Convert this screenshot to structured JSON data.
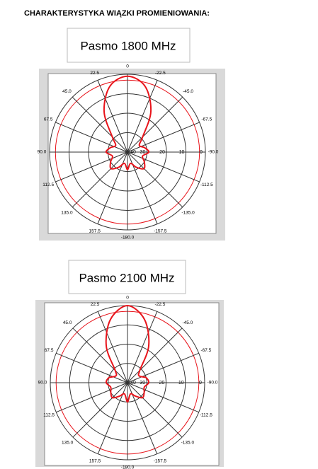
{
  "title": "CHARAKTERYSTYKA WIĄZKI PROMIENIOWANIA:",
  "chart_data": [
    {
      "type": "polar",
      "title": "Pasmo 1800 MHz",
      "x": [
        0,
        15,
        30,
        45,
        60,
        75,
        90,
        105,
        120,
        135,
        150,
        165,
        180,
        195,
        210,
        225,
        240,
        255,
        270,
        285,
        300,
        315,
        330,
        345
      ],
      "series": [
        {
          "color": "#e8141b",
          "values": [
            1,
            5,
            16,
            29,
            33,
            31,
            29,
            32,
            30,
            28,
            31,
            34,
            31,
            34,
            31,
            28,
            30,
            32,
            29,
            31,
            33,
            29,
            16,
            5
          ]
        }
      ],
      "angle_ticks": [
        0,
        22.5,
        {
          "value": 45,
          "label": "45.0"
        },
        67.5,
        {
          "value": 90,
          "label": "90.0"
        },
        112.5,
        {
          "value": 135,
          "label": "135.0"
        },
        157.5,
        {
          "value": -180,
          "label": "-180.0"
        },
        -157.5,
        {
          "value": -135,
          "label": "-135.0"
        },
        -112.5,
        {
          "value": -90,
          "label": "-90.0"
        },
        -67.5,
        {
          "value": -45,
          "label": "-45.0"
        },
        -22.5
      ],
      "rlim": [
        0,
        40
      ],
      "rticks": [
        40,
        30,
        20,
        10,
        0
      ],
      "r_reversed": true,
      "reference_circle": 3,
      "reference_color": "#e8141b",
      "grid": true
    },
    {
      "type": "polar",
      "title": "Pasmo 2100 MHz",
      "x": [
        0,
        15,
        30,
        45,
        60,
        75,
        90,
        105,
        120,
        135,
        150,
        165,
        180,
        195,
        210,
        225,
        240,
        255,
        270,
        285,
        300,
        315,
        330,
        345
      ],
      "series": [
        {
          "color": "#e8141b",
          "values": [
            0,
            6,
            18,
            31,
            33,
            30,
            29,
            31,
            30,
            29,
            32,
            34,
            30,
            34,
            32,
            29,
            30,
            31,
            29,
            30,
            33,
            31,
            18,
            6
          ]
        }
      ],
      "angle_ticks": [
        0,
        22.5,
        {
          "value": 45,
          "label": "45.0"
        },
        67.5,
        {
          "value": 90,
          "label": "90.0"
        },
        112.5,
        {
          "value": 135,
          "label": "135.0"
        },
        157.5,
        {
          "value": -180,
          "label": "-180.0"
        },
        -157.5,
        {
          "value": -135,
          "label": "-135.0"
        },
        -112.5,
        {
          "value": -90,
          "label": "-90.0"
        },
        -67.5,
        {
          "value": -45,
          "label": "-45.0"
        },
        -22.5
      ],
      "rlim": [
        0,
        40
      ],
      "rticks": [
        40,
        30,
        20,
        10,
        0
      ],
      "r_reversed": true,
      "reference_circle": 3,
      "reference_color": "#e8141b",
      "grid": true
    }
  ]
}
